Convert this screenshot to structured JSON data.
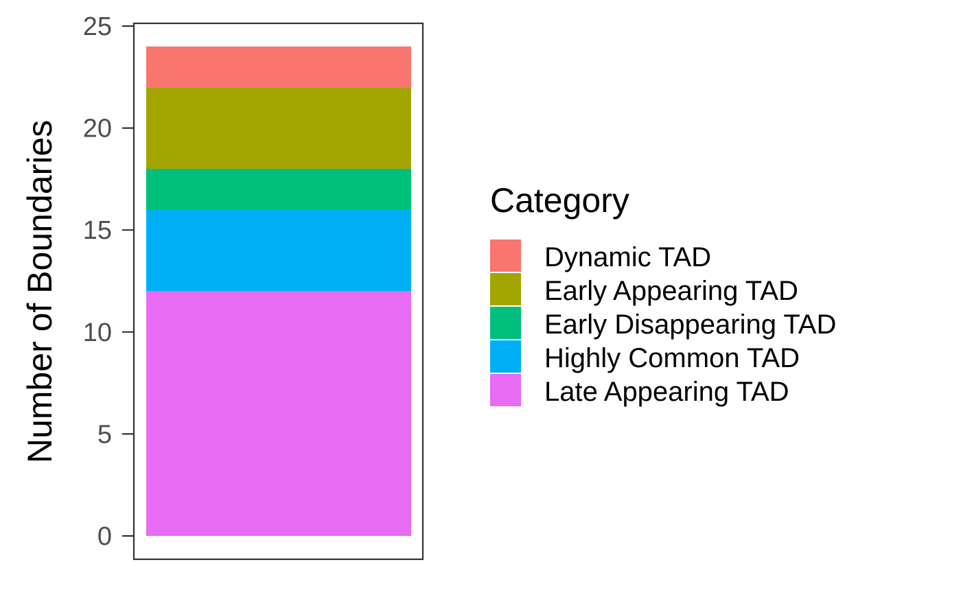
{
  "chart_data": {
    "type": "bar",
    "stacked": true,
    "categories": [
      ""
    ],
    "series": [
      {
        "name": "Late Appearing TAD",
        "values": [
          12
        ],
        "color": "#E76BF3"
      },
      {
        "name": "Highly Common TAD",
        "values": [
          4
        ],
        "color": "#00B0F6"
      },
      {
        "name": "Early Disappearing TAD",
        "values": [
          2
        ],
        "color": "#00BF7D"
      },
      {
        "name": "Early Appearing TAD",
        "values": [
          4
        ],
        "color": "#A3A500"
      },
      {
        "name": "Dynamic TAD",
        "values": [
          2
        ],
        "color": "#F8766D"
      }
    ],
    "ylabel": "Number of Boundaries",
    "xlabel": "",
    "ylim": [
      0,
      25
    ],
    "yticks": [
      0,
      5,
      10,
      15,
      20,
      25
    ],
    "grid": false,
    "legend": {
      "title": "Category",
      "placement": "right",
      "entries": [
        "Dynamic TAD",
        "Early Appearing TAD",
        "Early Disappearing TAD",
        "Highly Common TAD",
        "Late Appearing TAD"
      ]
    }
  }
}
